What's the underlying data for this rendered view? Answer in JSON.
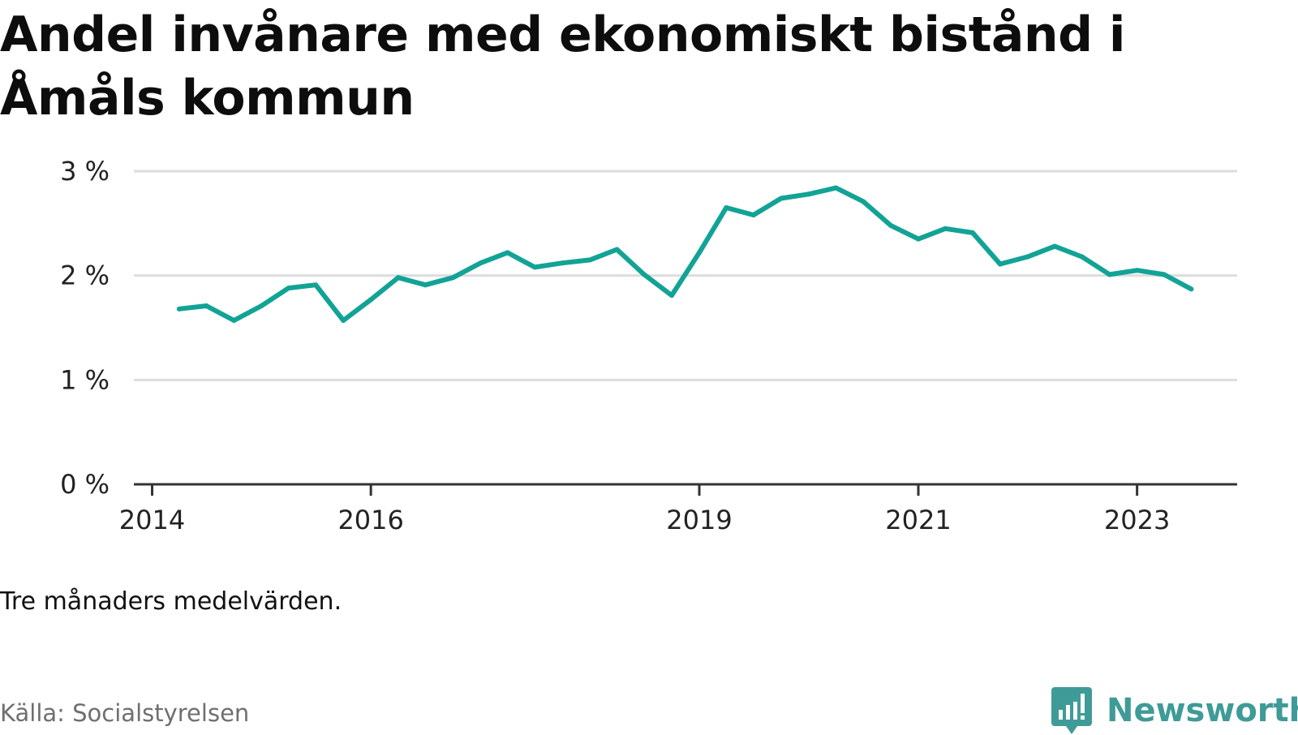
{
  "title": "Andel invånare med ekonomiskt bistånd i Åmåls kommun",
  "note": "Tre månaders medelvärden.",
  "source": "Källa: Socialstyrelsen",
  "brand": {
    "name": "Newsworthy",
    "icon": "newsworthy-logo-icon",
    "color": "#3f9b97"
  },
  "colors": {
    "line": "#12a396",
    "grid": "#dddddd",
    "axis": "#333333"
  },
  "chart_data": {
    "type": "line",
    "title": "Andel invånare med ekonomiskt bistånd i Åmåls kommun",
    "xlabel": "",
    "ylabel": "",
    "ylim": [
      0,
      3
    ],
    "xlim": [
      "2013-11-01",
      "2023-12-01"
    ],
    "yticks": [
      0,
      1,
      2,
      3
    ],
    "ytick_labels": [
      "0 %",
      "1 %",
      "2 %",
      "3 %"
    ],
    "xticks": [
      "2014-01-01",
      "2016-01-01",
      "2019-01-01",
      "2021-01-01",
      "2023-01-01"
    ],
    "xtick_labels": [
      "2014",
      "2016",
      "2019",
      "2021",
      "2023"
    ],
    "grid": true,
    "series": [
      {
        "x": [
          "2014-04",
          "2014-07",
          "2014-10",
          "2015-01",
          "2015-04",
          "2015-07",
          "2015-10",
          "2016-01",
          "2016-04",
          "2016-07",
          "2016-10",
          "2017-01",
          "2017-04",
          "2017-07",
          "2017-10",
          "2018-01",
          "2018-04",
          "2018-07",
          "2018-10",
          "2019-01",
          "2019-04",
          "2019-07",
          "2019-10",
          "2020-01",
          "2020-04",
          "2020-07",
          "2020-10",
          "2021-01",
          "2021-04",
          "2021-07",
          "2021-10",
          "2022-01",
          "2022-04",
          "2022-07",
          "2022-10",
          "2023-01",
          "2023-04",
          "2023-07"
        ],
        "values": [
          1.68,
          1.71,
          1.57,
          1.71,
          1.88,
          1.91,
          1.57,
          1.77,
          1.98,
          1.91,
          1.98,
          2.12,
          2.22,
          2.08,
          2.12,
          2.15,
          2.25,
          2.01,
          1.81,
          2.22,
          2.65,
          2.58,
          2.74,
          2.78,
          2.84,
          2.71,
          2.48,
          2.35,
          2.45,
          2.41,
          2.11,
          2.18,
          2.28,
          2.18,
          2.01,
          2.05,
          2.01,
          1.87
        ]
      }
    ]
  }
}
